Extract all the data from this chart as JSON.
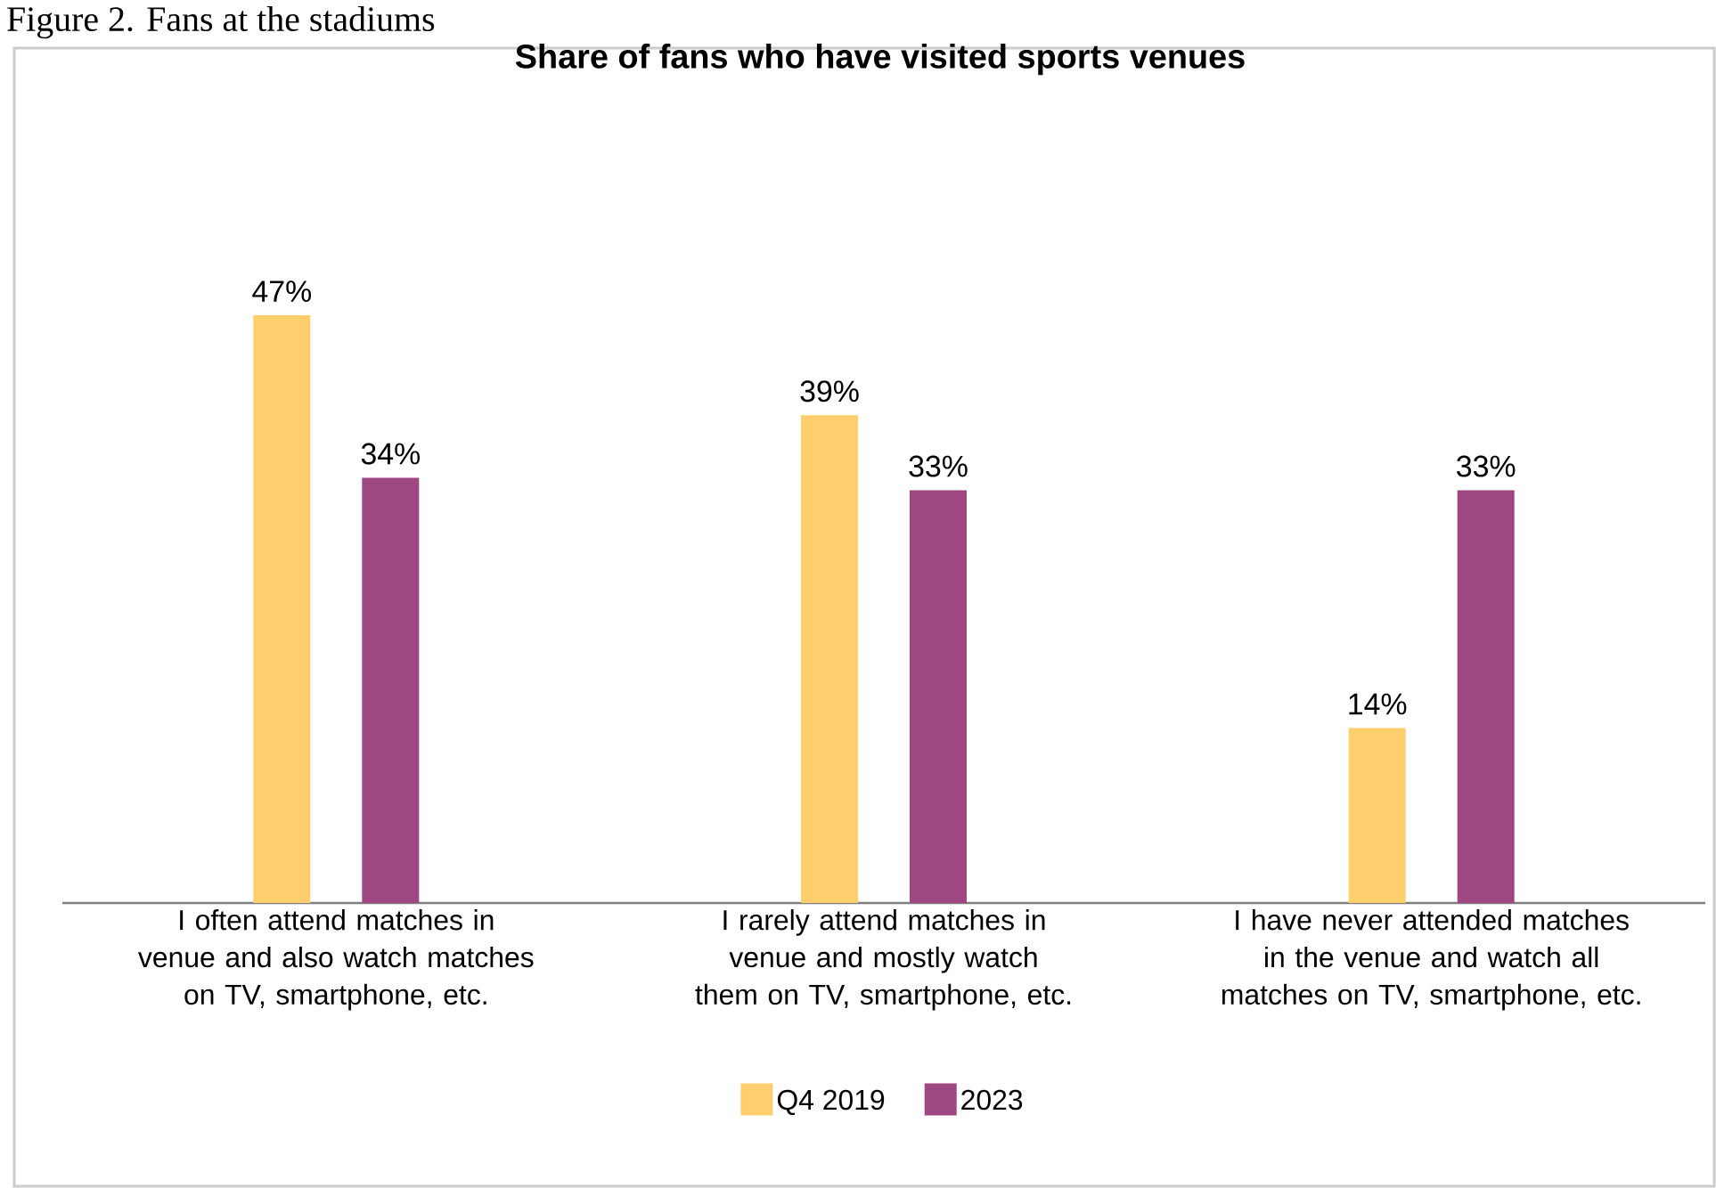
{
  "chart_data": {
    "type": "bar",
    "title": "Share of fans who have visited sports venues",
    "annotations": [
      "Figure 2. Fans at the stadiums"
    ],
    "categories": [
      "I often attend matches in venue and also watch matches on TV, smartphone, etc.",
      "I rarely attend matches in venue and mostly watch them on TV, smartphone, etc.",
      "I have never attended matches in the venue and watch all matches on TV, smartphone, etc."
    ],
    "series": [
      {
        "name": "Q4 2019",
        "color": "#ffcf6e",
        "values": [
          47,
          39,
          14
        ],
        "value_labels": [
          "47%",
          "39%",
          "14%"
        ]
      },
      {
        "name": "2023",
        "color": "#9e4780",
        "values": [
          34,
          33,
          33
        ],
        "value_labels": [
          "34%",
          "33%",
          "33%"
        ]
      }
    ],
    "legend": "bottom"
  }
}
